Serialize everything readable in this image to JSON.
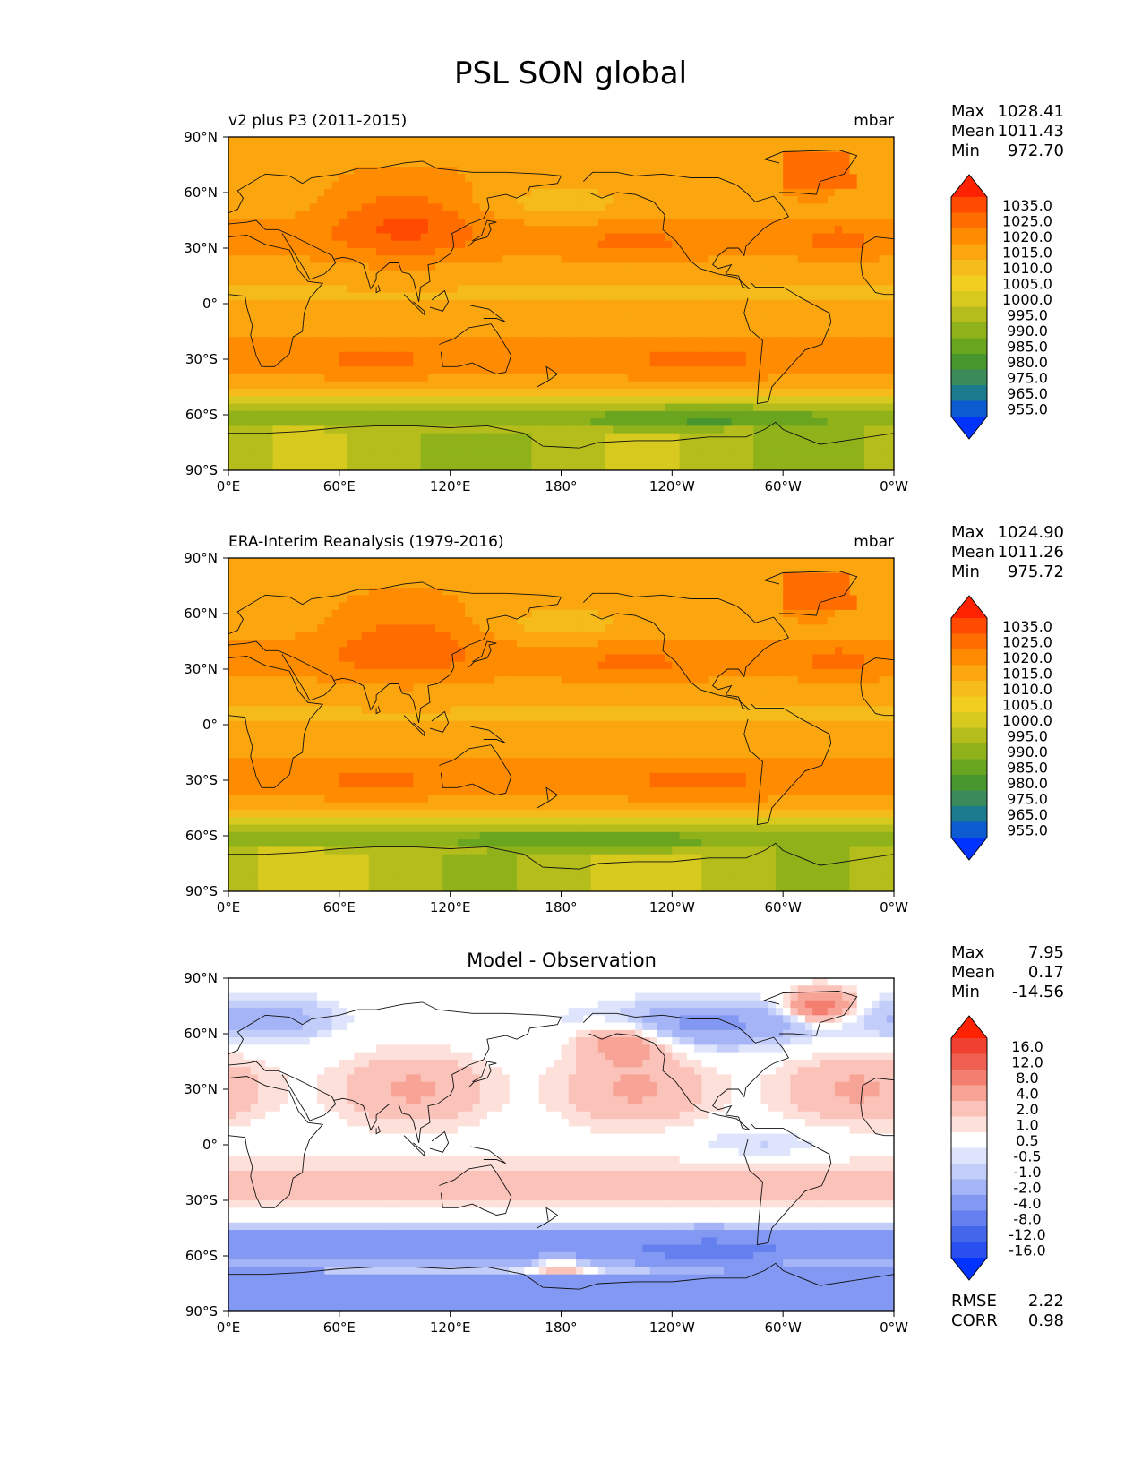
{
  "figure": {
    "title": "PSL SON global"
  },
  "chart_data": [
    {
      "type": "heatmap",
      "title": "v2 plus P3 (2011-2015)",
      "units": "mbar",
      "xlabel": "",
      "ylabel": "",
      "x_ticks": [
        "0°E",
        "60°E",
        "120°E",
        "180°",
        "120°W",
        "60°W",
        "0°W"
      ],
      "y_ticks": [
        "90°N",
        "60°N",
        "30°N",
        "0°",
        "30°S",
        "60°S",
        "90°S"
      ],
      "xlim": [
        0,
        360
      ],
      "ylim": [
        -90,
        90
      ],
      "stats": {
        "labels": [
          "Max",
          "Mean",
          "Min"
        ],
        "values": [
          "1028.41",
          "1011.43",
          "972.70"
        ]
      },
      "colorbar": {
        "levels": [
          "1035.0",
          "1025.0",
          "1020.0",
          "1015.0",
          "1010.0",
          "1005.0",
          "1000.0",
          "995.0",
          "990.0",
          "985.0",
          "980.0",
          "975.0",
          "965.0",
          "955.0"
        ],
        "colors": [
          "#ff2200",
          "#ff4a00",
          "#ff6d00",
          "#ff8c00",
          "#fba60f",
          "#f5bb1a",
          "#f1ce1f",
          "#d8c91f",
          "#b4bd1c",
          "#8fb21a",
          "#6aa520",
          "#48962e",
          "#3a8a5a",
          "#1c7a8e",
          "#0d5bd0",
          "#0033ff"
        ]
      },
      "field": {
        "scheme": "abs",
        "variant": "model"
      }
    },
    {
      "type": "heatmap",
      "title": "ERA-Interim Reanalysis (1979-2016)",
      "units": "mbar",
      "xlabel": "",
      "ylabel": "",
      "x_ticks": [
        "0°E",
        "60°E",
        "120°E",
        "180°",
        "120°W",
        "60°W",
        "0°W"
      ],
      "y_ticks": [
        "90°N",
        "60°N",
        "30°N",
        "0°",
        "30°S",
        "60°S",
        "90°S"
      ],
      "xlim": [
        0,
        360
      ],
      "ylim": [
        -90,
        90
      ],
      "stats": {
        "labels": [
          "Max",
          "Mean",
          "Min"
        ],
        "values": [
          "1024.90",
          "1011.26",
          "975.72"
        ]
      },
      "colorbar": {
        "levels": [
          "1035.0",
          "1025.0",
          "1020.0",
          "1015.0",
          "1010.0",
          "1005.0",
          "1000.0",
          "995.0",
          "990.0",
          "985.0",
          "980.0",
          "975.0",
          "965.0",
          "955.0"
        ],
        "colors": [
          "#ff2200",
          "#ff4a00",
          "#ff6d00",
          "#ff8c00",
          "#fba60f",
          "#f5bb1a",
          "#f1ce1f",
          "#d8c91f",
          "#b4bd1c",
          "#8fb21a",
          "#6aa520",
          "#48962e",
          "#3a8a5a",
          "#1c7a8e",
          "#0d5bd0",
          "#0033ff"
        ]
      },
      "field": {
        "scheme": "abs",
        "variant": "obs"
      }
    },
    {
      "type": "heatmap",
      "title": "Model - Observation",
      "units": "",
      "xlabel": "",
      "ylabel": "",
      "x_ticks": [
        "0°E",
        "60°E",
        "120°E",
        "180°",
        "120°W",
        "60°W",
        "0°W"
      ],
      "y_ticks": [
        "90°N",
        "60°N",
        "30°N",
        "0°",
        "30°S",
        "60°S",
        "90°S"
      ],
      "xlim": [
        0,
        360
      ],
      "ylim": [
        -90,
        90
      ],
      "stats": {
        "labels": [
          "Max",
          "Mean",
          "Min"
        ],
        "values": [
          "7.95",
          "0.17",
          "-14.56"
        ]
      },
      "colorbar": {
        "levels": [
          "16.0",
          "12.0",
          "8.0",
          "4.0",
          "2.0",
          "1.0",
          "0.5",
          "-0.5",
          "-1.0",
          "-2.0",
          "-4.0",
          "-8.0",
          "-12.0",
          "-16.0"
        ],
        "colors": [
          "#ff2200",
          "#f04030",
          "#f06050",
          "#f47f70",
          "#f7a396",
          "#fac2b8",
          "#fde0da",
          "#ffffff",
          "#dfe4fd",
          "#c3cdfa",
          "#a5b4f6",
          "#8398f2",
          "#6480ee",
          "#4466ea",
          "#2a4ff0",
          "#0033ff"
        ]
      },
      "field": {
        "scheme": "diff"
      },
      "extra_stats": {
        "labels": [
          "RMSE",
          "CORR"
        ],
        "values": [
          "2.22",
          "0.98"
        ]
      }
    }
  ]
}
